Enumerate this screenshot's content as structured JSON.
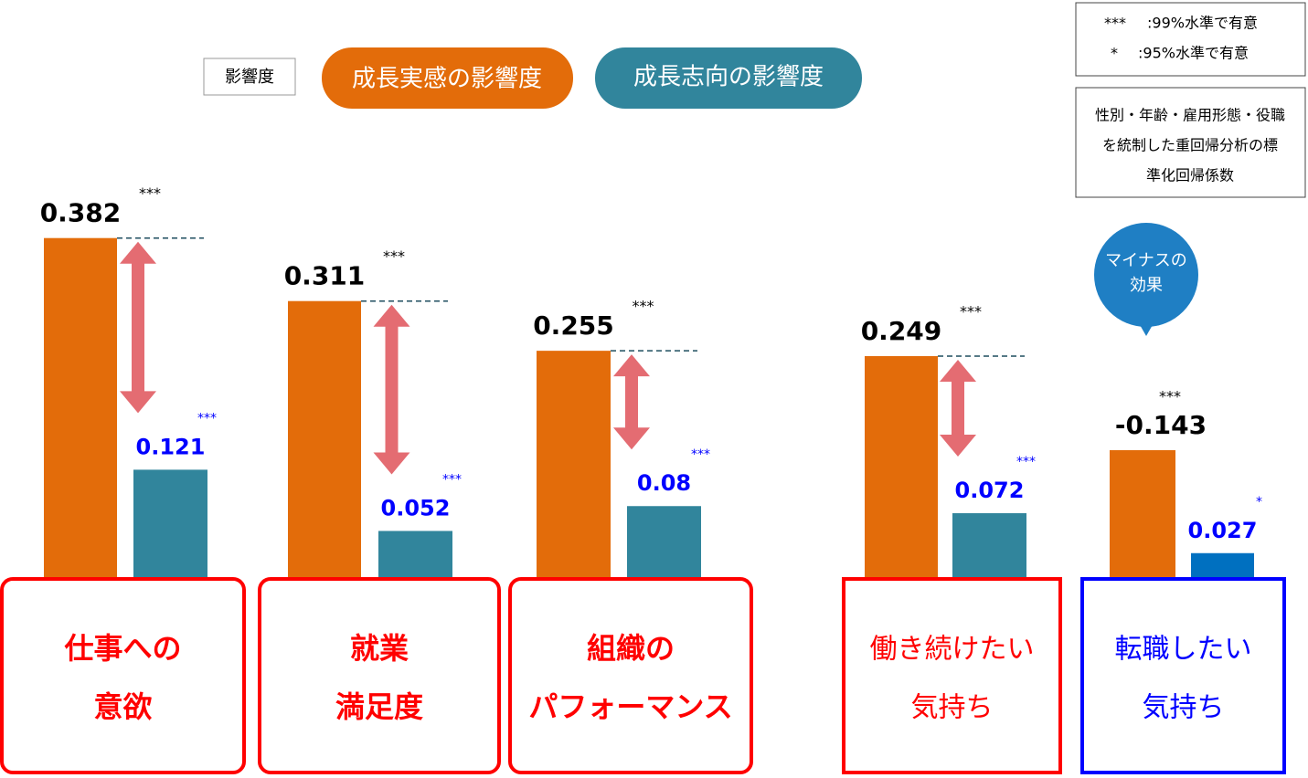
{
  "chart_data": {
    "type": "bar",
    "legend_title": "影響度",
    "categories": [
      [
        "仕事への",
        "意欲"
      ],
      [
        "就業",
        "満足度"
      ],
      [
        "組織の",
        "パフォーマンス"
      ],
      [
        "働き続けたい",
        "気持ち"
      ],
      [
        "転職したい",
        "気持ち"
      ]
    ],
    "category_colors": [
      "#ff0000",
      "#ff0000",
      "#ff0000",
      "#ff0000",
      "#0000ff"
    ],
    "series": [
      {
        "name": "成長実感の影響度",
        "color": "#e36c0a",
        "values": [
          0.382,
          0.311,
          0.255,
          0.249,
          -0.143
        ],
        "significance": [
          "***",
          "***",
          "***",
          "***",
          "***"
        ]
      },
      {
        "name": "成長志向の影響度",
        "color": "#31859c",
        "colors": [
          "#31859c",
          "#31859c",
          "#31859c",
          "#31859c",
          "#0070c0"
        ],
        "values": [
          0.121,
          0.052,
          0.08,
          0.072,
          0.027
        ],
        "significance": [
          "***",
          "***",
          "***",
          "***",
          "*"
        ]
      }
    ],
    "significance_notes": [
      [
        "***",
        ":99%水準で有意"
      ],
      [
        "*",
        ":95%水準で有意"
      ]
    ],
    "method_note": [
      "性別・年齢・雇用形態・役職",
      "を統制した重回帰分析の標",
      "準化回帰係数"
    ],
    "callout": [
      "マイナスの",
      "効果"
    ]
  }
}
